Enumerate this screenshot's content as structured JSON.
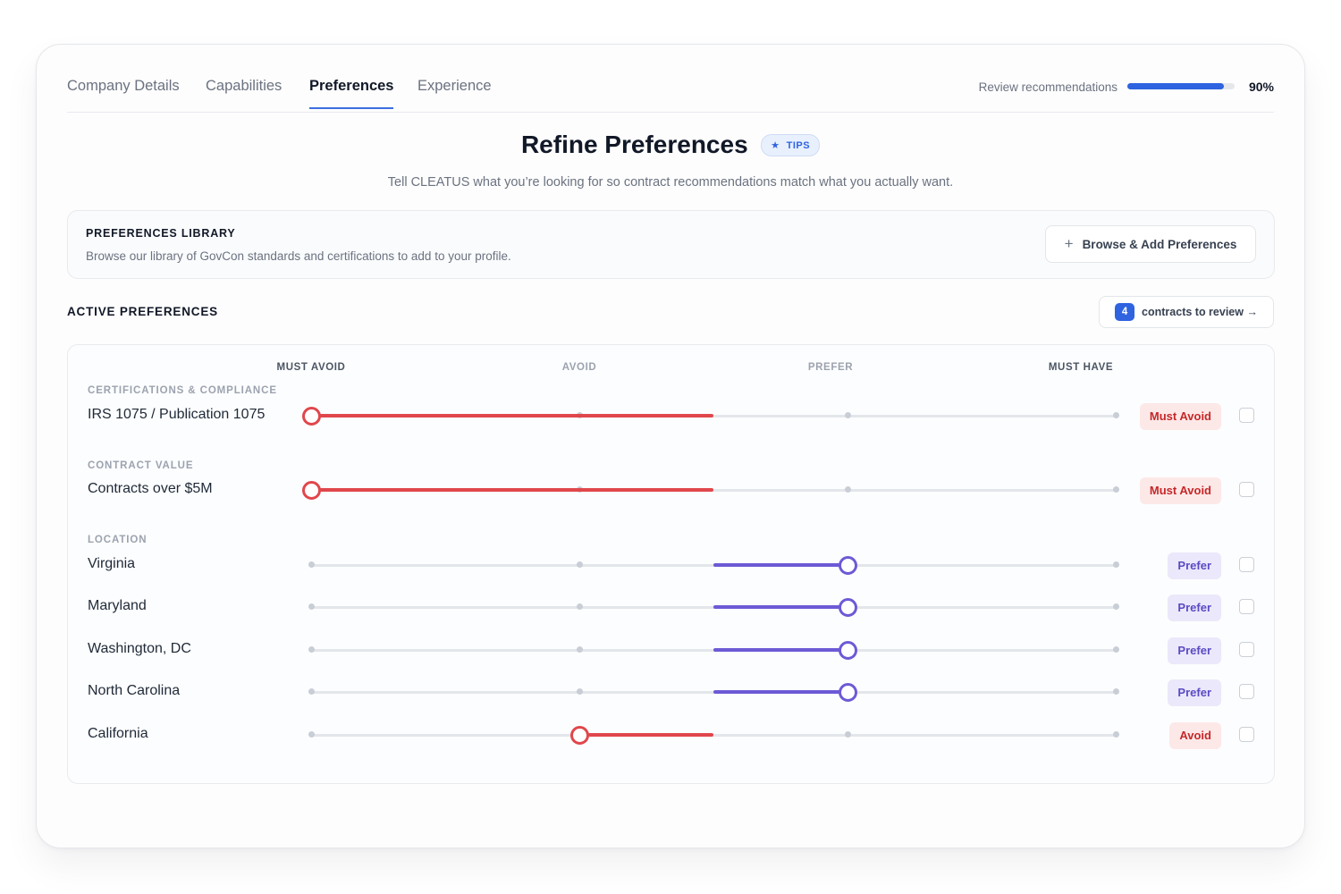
{
  "tabs": [
    {
      "label": "Company Details",
      "active": false
    },
    {
      "label": "Capabilities",
      "active": false
    },
    {
      "label": "Preferences",
      "active": true
    },
    {
      "label": "Experience",
      "active": false
    }
  ],
  "progress": {
    "label": "Review recommendations",
    "value_text": "90%",
    "value": 90
  },
  "header": {
    "title": "Refine Preferences",
    "tips_label": "TIPS",
    "tips_icon": "star-icon",
    "subtitle": "Tell CLEATUS what you’re looking for so contract recommendations match what you actually want."
  },
  "library": {
    "title": "PREFERENCES LIBRARY",
    "description": "Browse our library of GovCon standards and certifications to add to your profile.",
    "button_label": "Browse & Add Preferences",
    "button_icon": "plus-icon"
  },
  "active": {
    "title": "ACTIVE PREFERENCES",
    "review_count": "4",
    "review_label": "contracts to review →"
  },
  "scale": {
    "levels": [
      "MUST AVOID",
      "AVOID",
      "PREFER",
      "MUST HAVE"
    ],
    "level_values": [
      -2,
      -1,
      1,
      2
    ]
  },
  "colors": {
    "avoid": "#e0474c",
    "avoid_badge_bg": "#fde8e8",
    "avoid_badge_text": "#c62828",
    "prefer": "#6c5ad6",
    "prefer_badge_bg": "#ebe8fb",
    "prefer_badge_text": "#5b4bc4",
    "accent": "#2f63e0"
  },
  "sections": [
    {
      "label": "CERTIFICATIONS & COMPLIANCE",
      "items": [
        {
          "label": "IRS 1075 / Publication 1075",
          "level": -2,
          "status": "Must Avoid"
        }
      ]
    },
    {
      "label": "CONTRACT VALUE",
      "items": [
        {
          "label": "Contracts over $5M",
          "level": -2,
          "status": "Must Avoid"
        }
      ]
    },
    {
      "label": "LOCATION",
      "items": [
        {
          "label": "Virginia",
          "level": 1,
          "status": "Prefer"
        },
        {
          "label": "Maryland",
          "level": 1,
          "status": "Prefer"
        },
        {
          "label": "Washington, DC",
          "level": 1,
          "status": "Prefer"
        },
        {
          "label": "North Carolina",
          "level": 1,
          "status": "Prefer"
        },
        {
          "label": "California",
          "level": -1,
          "status": "Avoid"
        }
      ]
    }
  ]
}
